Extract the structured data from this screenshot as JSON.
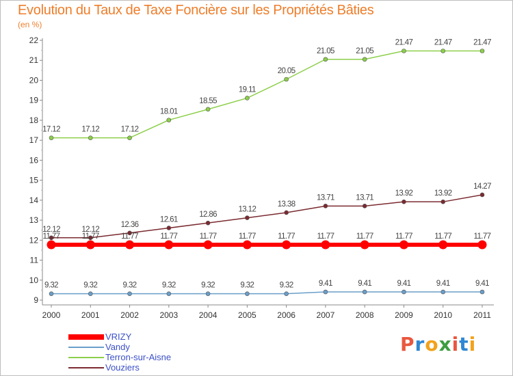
{
  "title": "Evolution du Taux de Taxe Foncière sur les Propriétés Bâties",
  "subtitle": "(en %)",
  "logo": {
    "text": "Proxiti",
    "colors": [
      "#e9573f",
      "#2e87d2",
      "#f2a21a",
      "#3d9e3f",
      "#e9573f",
      "#2e87d2",
      "#f2a21a"
    ]
  },
  "chart_data": {
    "type": "line",
    "title": "Evolution du Taux de Taxe Foncière sur les Propriétés Bâties",
    "ylabel": "(en %)",
    "xlabel": "",
    "categories": [
      "2000",
      "2001",
      "2002",
      "2003",
      "2004",
      "2005",
      "2006",
      "2007",
      "2008",
      "2009",
      "2010",
      "2011"
    ],
    "ylim": [
      9,
      22
    ],
    "yticks": [
      9,
      10,
      11,
      12,
      13,
      14,
      15,
      16,
      17,
      18,
      19,
      20,
      21,
      22
    ],
    "series": [
      {
        "name": "VRIZY",
        "color": "#ff0000",
        "values": [
          11.77,
          11.77,
          11.77,
          11.77,
          11.77,
          11.77,
          11.77,
          11.77,
          11.77,
          11.77,
          11.77,
          11.77
        ],
        "labels": [
          "11.77",
          "11.77",
          "11.77",
          "11.77",
          "11.77",
          "11.77",
          "11.77",
          "11.77",
          "11.77",
          "11.77",
          "11.77",
          "11.77"
        ],
        "bold": true
      },
      {
        "name": "Vandy",
        "color": "#6a9ec9",
        "values": [
          9.32,
          9.32,
          9.32,
          9.32,
          9.32,
          9.32,
          9.32,
          9.41,
          9.41,
          9.41,
          9.41,
          9.41
        ],
        "labels": [
          "9.32",
          "9.32",
          "9.32",
          "9.32",
          "9.32",
          "9.32",
          "9.32",
          "9.41",
          "9.41",
          "9.41",
          "9.41",
          "9.41"
        ]
      },
      {
        "name": "Terron-sur-Aisne",
        "color": "#8ccf4a",
        "values": [
          17.12,
          17.12,
          17.12,
          18.01,
          18.55,
          19.11,
          20.05,
          21.05,
          21.05,
          21.47,
          21.47,
          21.47
        ],
        "labels": [
          "17.12",
          "17.12",
          "17.12",
          "18.01",
          "18.55",
          "19.11",
          "20.05",
          "21.05",
          "21.05",
          "21.47",
          "21.47",
          "21.47"
        ]
      },
      {
        "name": "Vouziers",
        "color": "#7a2a30",
        "values": [
          12.12,
          12.12,
          12.36,
          12.61,
          12.86,
          13.12,
          13.38,
          13.71,
          13.71,
          13.92,
          13.92,
          14.27
        ],
        "labels": [
          "12.12",
          "12.12",
          "12.36",
          "12.61",
          "12.86",
          "13.12",
          "13.38",
          "13.71",
          "13.71",
          "13.92",
          "13.92",
          "14.27"
        ]
      }
    ],
    "legend_position": "bottom-left",
    "grid": false
  }
}
